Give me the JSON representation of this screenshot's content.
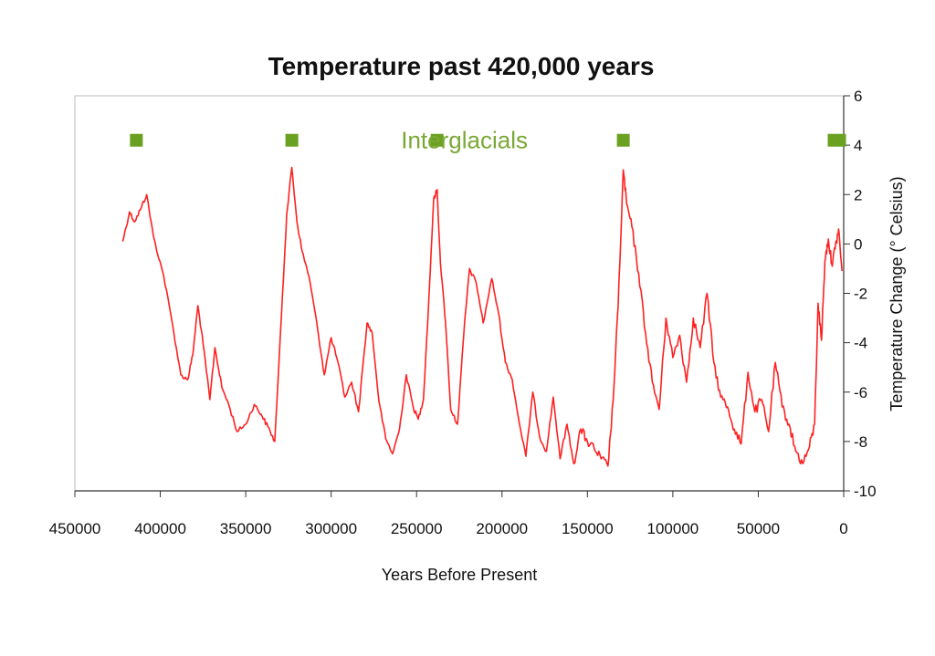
{
  "colors": {
    "series": "#ff2020",
    "marker": "#6aa121",
    "annotation": "#7aa835",
    "axis": "#333333",
    "frame": "#bbbbbb"
  },
  "chart_data": {
    "type": "line",
    "title": "Temperature past 420,000 years",
    "xlabel": "Years Before Present",
    "ylabel": "Temperature Change (° Celsius)",
    "xlim": [
      450000,
      0
    ],
    "ylim": [
      -10,
      6
    ],
    "x_reversed": true,
    "x_ticks": [
      450000,
      400000,
      350000,
      300000,
      250000,
      200000,
      150000,
      100000,
      50000,
      0
    ],
    "x_tick_labels": [
      "450000",
      "400000",
      "350000",
      "300000",
      "250000",
      "200000",
      "150000",
      "100000",
      "50000",
      "0"
    ],
    "y_ticks": [
      6,
      4,
      2,
      0,
      -2,
      -4,
      -6,
      -8,
      -10
    ],
    "y_tick_labels": [
      "6",
      "4",
      "2",
      "0",
      "-2",
      "-4",
      "-6",
      "-8",
      "-10"
    ],
    "y_axis_side": "right",
    "grid": false,
    "annotation": {
      "text": "Interglacials",
      "x": 222000,
      "y": 4.2
    },
    "interglacial_markers": [
      {
        "x": 414000,
        "y": 4.2
      },
      {
        "x": 323000,
        "y": 4.2
      },
      {
        "x": 238000,
        "y": 4.2
      },
      {
        "x": 129000,
        "y": 4.2
      },
      {
        "x": 4000,
        "y": 4.2
      }
    ],
    "series": [
      {
        "name": "Temperature change",
        "x": [
          422000,
          418000,
          415000,
          411000,
          408000,
          404000,
          398000,
          393000,
          388000,
          384000,
          381000,
          378000,
          375000,
          371000,
          368000,
          364000,
          360000,
          355000,
          350000,
          345000,
          341000,
          337000,
          333000,
          329000,
          326000,
          323000,
          320000,
          317000,
          313000,
          308000,
          304000,
          300000,
          296000,
          292000,
          288000,
          284000,
          279000,
          276000,
          272000,
          268000,
          264000,
          260000,
          256000,
          252000,
          249000,
          246000,
          243000,
          240000,
          238000,
          236000,
          233000,
          230000,
          226000,
          222000,
          219000,
          215000,
          211000,
          206000,
          202000,
          198000,
          194000,
          190000,
          186000,
          182000,
          178000,
          174000,
          170000,
          166000,
          162000,
          158000,
          154000,
          150000,
          146000,
          142000,
          138000,
          135000,
          132000,
          129000,
          127000,
          124000,
          120000,
          116000,
          112000,
          108000,
          104000,
          100000,
          96000,
          92000,
          88000,
          84000,
          80000,
          76000,
          72000,
          68000,
          64000,
          60000,
          56000,
          52000,
          48000,
          44000,
          40000,
          36000,
          32000,
          28000,
          24000,
          20000,
          17000,
          15000,
          13000,
          11000,
          9000,
          7000,
          5000,
          3000,
          1000
        ],
        "values": [
          0.1,
          1.3,
          0.9,
          1.5,
          2.0,
          0.3,
          -1.3,
          -3.2,
          -5.3,
          -5.5,
          -4.5,
          -2.5,
          -4.0,
          -6.3,
          -4.2,
          -5.8,
          -6.5,
          -7.6,
          -7.3,
          -6.5,
          -6.9,
          -7.4,
          -8.0,
          -2.8,
          1.2,
          3.1,
          0.9,
          -0.3,
          -1.3,
          -3.4,
          -5.3,
          -3.8,
          -4.8,
          -6.2,
          -5.6,
          -6.8,
          -3.2,
          -3.6,
          -6.4,
          -7.9,
          -8.5,
          -7.5,
          -5.3,
          -6.6,
          -7.1,
          -6.3,
          -2.5,
          1.8,
          2.2,
          -0.8,
          -3.2,
          -6.7,
          -7.3,
          -3.3,
          -1.0,
          -1.6,
          -3.2,
          -1.4,
          -2.8,
          -4.8,
          -5.5,
          -7.2,
          -8.6,
          -6.0,
          -7.8,
          -8.4,
          -6.2,
          -8.7,
          -7.3,
          -8.9,
          -7.5,
          -8.0,
          -8.3,
          -8.7,
          -9.0,
          -6.4,
          -2.5,
          3.0,
          1.6,
          0.7,
          -1.2,
          -3.6,
          -5.6,
          -6.7,
          -3.0,
          -4.6,
          -3.7,
          -5.6,
          -3.0,
          -4.2,
          -2.0,
          -4.8,
          -6.2,
          -6.6,
          -7.5,
          -8.1,
          -5.2,
          -6.8,
          -6.3,
          -7.6,
          -4.8,
          -6.6,
          -7.3,
          -8.4,
          -8.9,
          -8.2,
          -7.3,
          -2.4,
          -3.9,
          -0.7,
          0.2,
          -0.8,
          -0.2,
          0.6,
          -1.1
        ]
      }
    ]
  }
}
